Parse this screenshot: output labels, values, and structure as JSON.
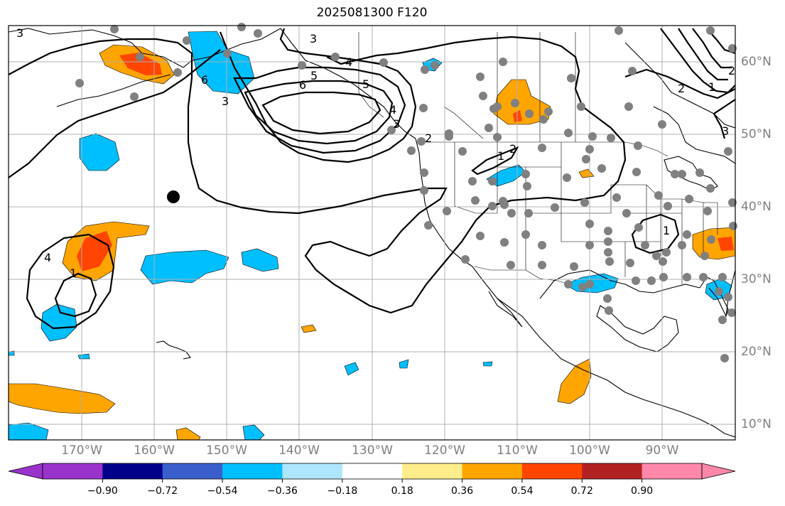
{
  "title": "2025081300 F120",
  "longitude_labels": [
    "170°W",
    "160°W",
    "150°W",
    "140°W",
    "130°W",
    "120°W",
    "110°W",
    "100°W",
    "90°W"
  ],
  "latitude_labels": [
    "60°N",
    "50°N",
    "40°N",
    "30°N",
    "20°N",
    "10°N"
  ],
  "contour_labels": [
    "3",
    "3",
    "3",
    "4",
    "5",
    "6",
    "6",
    "5",
    "4",
    "3",
    "2",
    "1",
    "2",
    "3",
    "4",
    "1",
    "1",
    "2",
    "1",
    "2"
  ],
  "colorbar": {
    "colors": [
      "#9933cc",
      "#00008b",
      "#3a5fcd",
      "#00bfff",
      "#aee6fe",
      "#ffffff",
      "#ffec8b",
      "#ffa500",
      "#ff4500",
      "#b22222",
      "#ff88aa"
    ],
    "ticks": [
      "−0.90",
      "−0.72",
      "−0.54",
      "−0.36",
      "−0.18",
      "0.18",
      "0.36",
      "0.54",
      "0.72",
      "0.90"
    ]
  },
  "legend_colors": {
    "station": "#808080",
    "marker": "#000000",
    "contour": "#000000",
    "coast": "#000000"
  }
}
